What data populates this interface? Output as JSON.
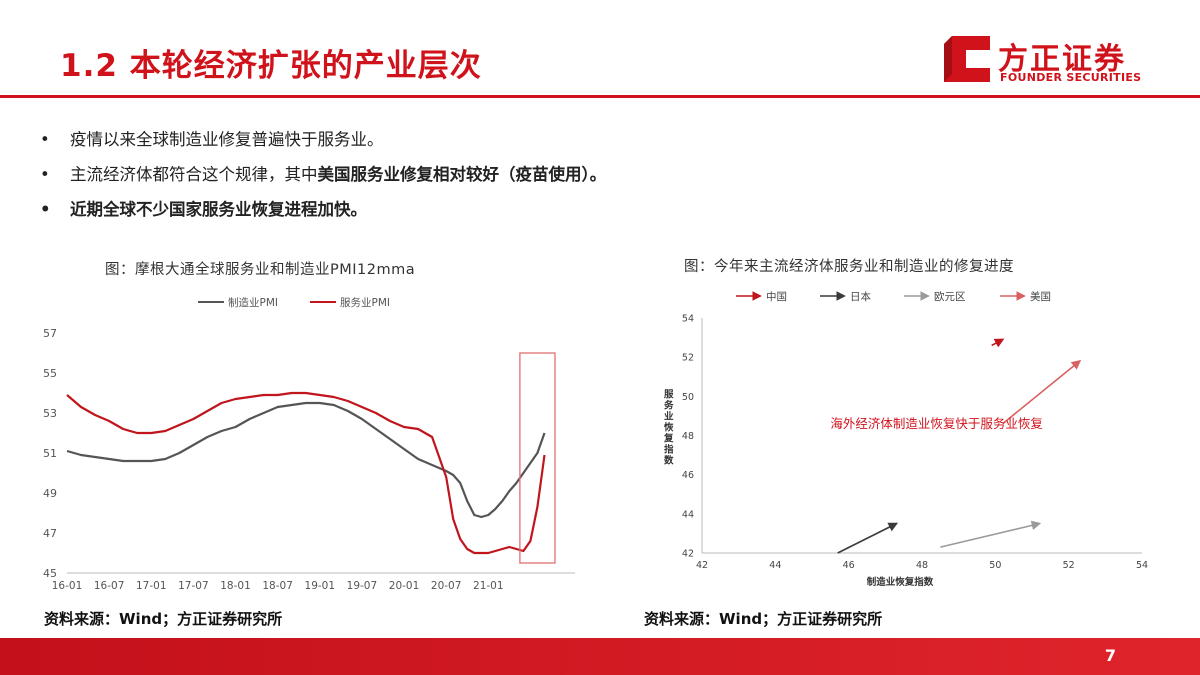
{
  "slide": {
    "title": "1.2 本轮经济扩张的产业层次",
    "logo_cn": "方正证券",
    "logo_en": "FOUNDER SECURITIES",
    "page_number": "7",
    "colors": {
      "brand_red": "#d0121b"
    }
  },
  "bullets": {
    "b1": "疫情以来全球制造业修复普遍快于服务业。",
    "b2_pre": "主流经济体都符合这个规律，其中",
    "b2_bold": "美国服务业修复相对较好（疫苗使用）。",
    "b3": "近期全球不少国家服务业恢复进程加快。"
  },
  "left_chart": {
    "caption": "图：摩根大通全球服务业和制造业PMI12mma",
    "source": "资料来源：Wind；方正证券研究所"
  },
  "right_chart": {
    "caption": "图：今年来主流经济体服务业和制造业的修复进度",
    "source": "资料来源：Wind；方正证券研究所",
    "annotation": "海外经济体制造业恢复快于服务业恢复"
  },
  "chart_data": [
    {
      "type": "line",
      "title": "图：摩根大通全球服务业和制造业PMI12mma",
      "x_ticks": [
        "16-01",
        "16-07",
        "17-01",
        "17-07",
        "18-01",
        "18-07",
        "19-01",
        "19-07",
        "20-01",
        "20-07",
        "21-01"
      ],
      "ylim": [
        45,
        57
      ],
      "y_ticks": [
        45,
        47,
        49,
        51,
        53,
        55,
        57
      ],
      "legend_position": "top",
      "series": [
        {
          "name": "制造业PMI",
          "color": "#555555",
          "x": [
            0,
            2,
            4,
            6,
            8,
            10,
            12,
            14,
            16,
            18,
            20,
            22,
            24,
            26,
            28,
            30,
            32,
            34,
            36,
            38,
            40,
            42,
            44,
            46,
            48,
            50,
            52,
            54,
            55,
            56,
            57,
            58,
            59,
            60,
            61,
            62,
            63,
            64
          ],
          "values": [
            51.1,
            50.9,
            50.8,
            50.7,
            50.6,
            50.6,
            50.6,
            50.7,
            51.0,
            51.4,
            51.8,
            52.1,
            52.3,
            52.7,
            53.0,
            53.3,
            53.4,
            53.5,
            53.5,
            53.4,
            53.1,
            52.7,
            52.2,
            51.7,
            51.2,
            50.7,
            50.4,
            50.1,
            49.9,
            49.5,
            48.6,
            47.9,
            47.8,
            47.9,
            48.2,
            48.6,
            49.1,
            49.5
          ]
        },
        {
          "name": "服务业PMI",
          "color": "#c0151c",
          "x": [
            0,
            2,
            4,
            6,
            8,
            10,
            12,
            14,
            16,
            18,
            20,
            22,
            24,
            26,
            28,
            30,
            32,
            34,
            36,
            38,
            40,
            42,
            44,
            46,
            48,
            50,
            52,
            54,
            55,
            56,
            57,
            58,
            59,
            60,
            61,
            62,
            63,
            64
          ],
          "values": [
            53.9,
            53.3,
            52.9,
            52.6,
            52.2,
            52.0,
            52.0,
            52.1,
            52.4,
            52.7,
            53.1,
            53.5,
            53.7,
            53.8,
            53.9,
            53.9,
            54.0,
            54.0,
            53.9,
            53.8,
            53.6,
            53.3,
            53.0,
            52.6,
            52.3,
            52.2,
            51.8,
            49.8,
            47.7,
            46.7,
            46.2,
            46.0,
            46.0,
            46.0,
            46.1,
            46.2,
            46.3,
            46.2
          ]
        }
      ],
      "tail_x": [
        64,
        65,
        66,
        67,
        68
      ],
      "tail_manufacturing": [
        49.5,
        50.0,
        50.5,
        51.0,
        52.0
      ],
      "tail_services": [
        46.2,
        46.1,
        46.6,
        48.3,
        50.9
      ],
      "highlight_box": {
        "x_from": 64.5,
        "x_to": 69.5,
        "y_from": 45.5,
        "y_to": 56.0
      }
    },
    {
      "type": "scatter",
      "title": "图：今年来主流经济体服务业和制造业的修复进度",
      "xlabel": "制造业恢复指数",
      "ylabel": "服务业恢复指数",
      "xlim": [
        42,
        54
      ],
      "ylim": [
        42,
        54
      ],
      "x_ticks": [
        42,
        44,
        46,
        48,
        50,
        52,
        54
      ],
      "y_ticks": [
        42,
        44,
        46,
        48,
        50,
        52,
        54
      ],
      "legend_position": "top",
      "series": [
        {
          "name": "中国",
          "color": "#c0151c",
          "points": [
            [
              49.9,
              52.6
            ],
            [
              50.2,
              52.9
            ]
          ]
        },
        {
          "name": "日本",
          "color": "#3a3a3a",
          "points": [
            [
              45.7,
              42.0
            ],
            [
              47.3,
              43.5
            ]
          ]
        },
        {
          "name": "欧元区",
          "color": "#9a9a9a",
          "points": [
            [
              48.5,
              42.3
            ],
            [
              51.2,
              43.5
            ]
          ]
        },
        {
          "name": "美国",
          "color": "#d96060",
          "points": [
            [
              50.2,
              48.6
            ],
            [
              52.3,
              51.8
            ]
          ]
        }
      ]
    }
  ]
}
